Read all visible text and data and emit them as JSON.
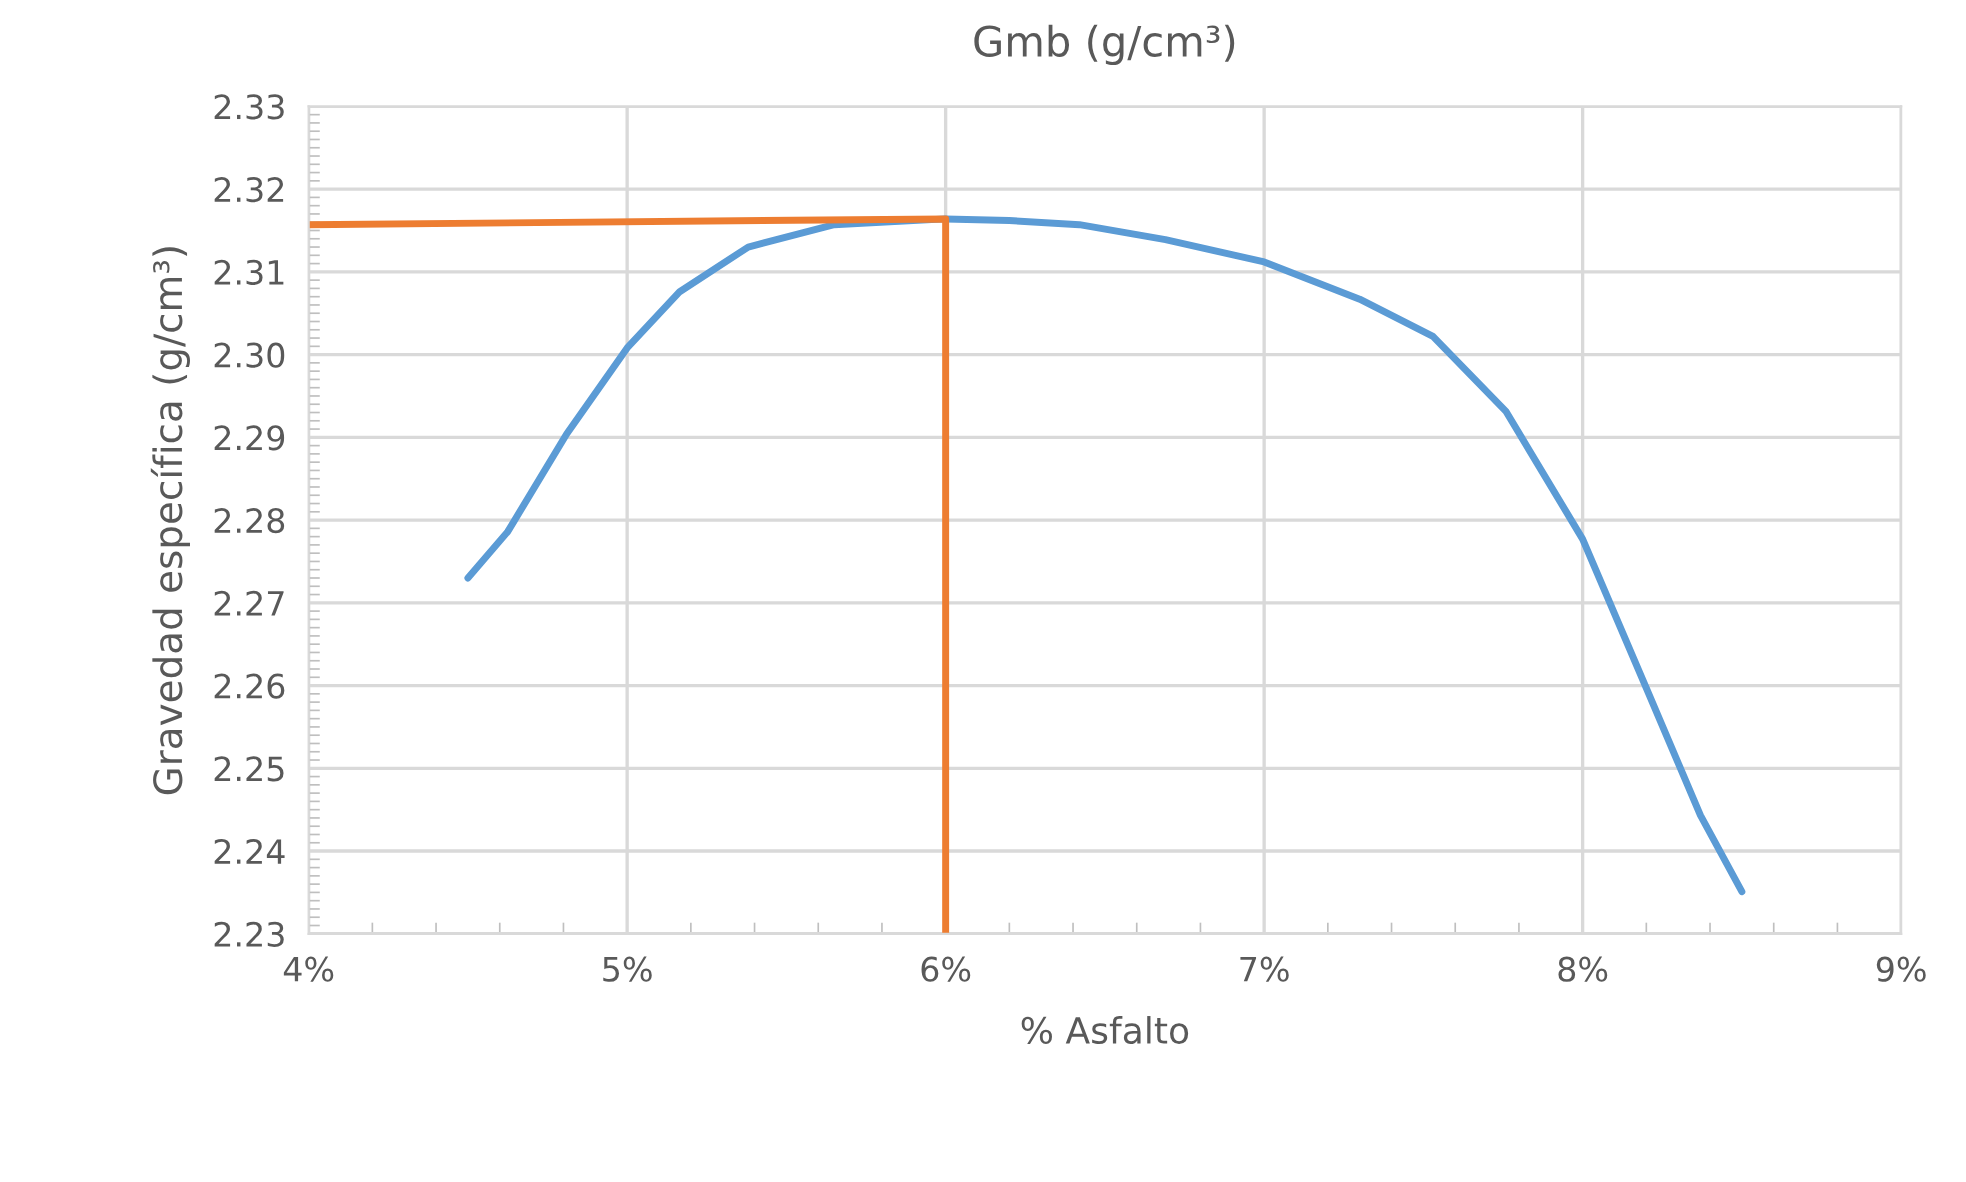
{
  "chart_data": {
    "type": "line",
    "title": "Gmb (g/cm³)",
    "xlabel": "% Asfalto",
    "ylabel": "Gravedad específica (g/cm³)",
    "series": [
      {
        "color": "#5b9bd5",
        "x": [
          4.5,
          4.625,
          4.81,
          5.0,
          5.165,
          5.38,
          5.65,
          6.0,
          6.2,
          6.42,
          6.69,
          7.0,
          7.3,
          7.53,
          7.76,
          8.0,
          8.2,
          8.37,
          8.5
        ],
        "values": [
          2.273,
          2.2786,
          2.2904,
          2.3008,
          2.3076,
          2.313,
          2.3157,
          2.3164,
          2.3162,
          2.3157,
          2.3139,
          2.3112,
          2.3067,
          2.3022,
          2.2931,
          2.2777,
          2.2597,
          2.2443,
          2.2351
        ]
      },
      {
        "color": "#ed7d31",
        "x": [
          4.0,
          6.0,
          6.0
        ],
        "values": [
          2.3157,
          2.3164,
          2.23
        ]
      }
    ],
    "xlim": [
      4,
      9
    ],
    "xticks": [
      {
        "value": 4,
        "label": "4%"
      },
      {
        "value": 5,
        "label": "5%"
      },
      {
        "value": 6,
        "label": "6%"
      },
      {
        "value": 7,
        "label": "7%"
      },
      {
        "value": 8,
        "label": "8%"
      },
      {
        "value": 9,
        "label": "9%"
      }
    ],
    "ylim": [
      2.23,
      2.33
    ],
    "yticks": [
      {
        "value": 2.23,
        "label": "2.23"
      },
      {
        "value": 2.24,
        "label": "2.24"
      },
      {
        "value": 2.25,
        "label": "2.25"
      },
      {
        "value": 2.26,
        "label": "2.26"
      },
      {
        "value": 2.27,
        "label": "2.27"
      },
      {
        "value": 2.28,
        "label": "2.28"
      },
      {
        "value": 2.29,
        "label": "2.29"
      },
      {
        "value": 2.3,
        "label": "2.30"
      },
      {
        "value": 2.31,
        "label": "2.31"
      },
      {
        "value": 2.32,
        "label": "2.32"
      },
      {
        "value": 2.33,
        "label": "2.33"
      }
    ],
    "grid": true,
    "marker": "none",
    "line_style": "solid",
    "legend": false
  }
}
